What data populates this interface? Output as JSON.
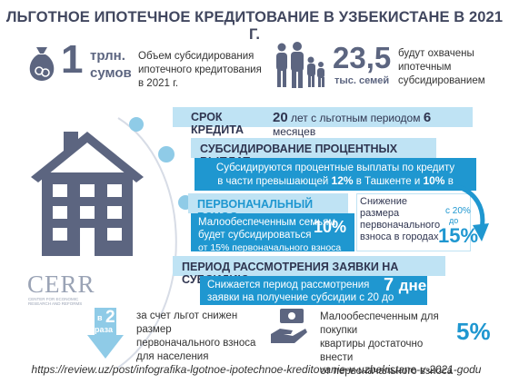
{
  "title": "ЛЬГОТНОЕ ИПОТЕЧНОЕ КРЕДИТОВАНИЕ В УЗБЕКИСТАНЕ В 2021 Г.",
  "stat1": {
    "number": "1",
    "unit_line1": "трлн.",
    "unit_line2": "сумов",
    "desc_line1": "Объем субсидирования",
    "desc_line2": "ипотечного кредитования",
    "desc_line3": "в 2021 г."
  },
  "stat2": {
    "number": "23,5",
    "unit": "тыс. семей",
    "desc_line1": "будут охвачены",
    "desc_line2": "ипотечным",
    "desc_line3": "субсидированием"
  },
  "term": {
    "header": "СРОК КРЕДИТА",
    "num1": "20",
    "text1": "лет с льготным периодом",
    "num2": "6",
    "text2": "месяцев"
  },
  "interest": {
    "header": "СУБСИДИРОВАНИЕ ПРОЦЕНТНЫХ ВЫПЛАТ",
    "line1": "Субсидируются процентные выплаты по кредиту",
    "line2a": "в части превышающей",
    "pct1": "12%",
    "line2b": "в Ташкенте и",
    "pct2": "10%",
    "line2c": "в регионах"
  },
  "down_payment": {
    "header": "ПЕРВОНАЧАЛЬНЫЙ ВЗНОС",
    "line1": "Малообеспеченным семьям",
    "line2": "будет субсидироваться",
    "line3": "от 15% первоначального взноса",
    "pct": "10%",
    "right_line1": "Снижение размера",
    "right_line2": "первоначального",
    "right_line3": "взноса в городах",
    "from": "с 20%",
    "to": "до",
    "target": "15%"
  },
  "review": {
    "header": "ПЕРИОД РАССМОТРЕНИЯ ЗАЯВКИ НА СУБСИДИЮ",
    "line1": "Снижается период рассмотрения",
    "line2": "заявки на получение субсидии с 20 до",
    "num": "7",
    "unit": "дней"
  },
  "logo": {
    "text": "CERR",
    "sub": "CENTER FOR ECONOMIC RESEARCH AND REFORMS"
  },
  "reduced": {
    "v": "в",
    "num": "2",
    "raza": "раза",
    "line1": "за счет льгот снижен размер",
    "line2": "первоначального взноса",
    "line3": "для населения"
  },
  "low_income": {
    "line1": "Малообеспеченным для покупки",
    "line2": "квартиры достаточно внести",
    "line3": "от первоначального взноса",
    "pct": "5%"
  },
  "source_url": "https://review.uz/post/infografika-lgotnoe-ipotechnoe-kreditovanie-v-uzbekistane-v-2021-godu",
  "colors": {
    "accent": "#1f97d0",
    "light": "#bfe3f4",
    "dark_text": "#41475f",
    "icon": "#5c6580"
  }
}
